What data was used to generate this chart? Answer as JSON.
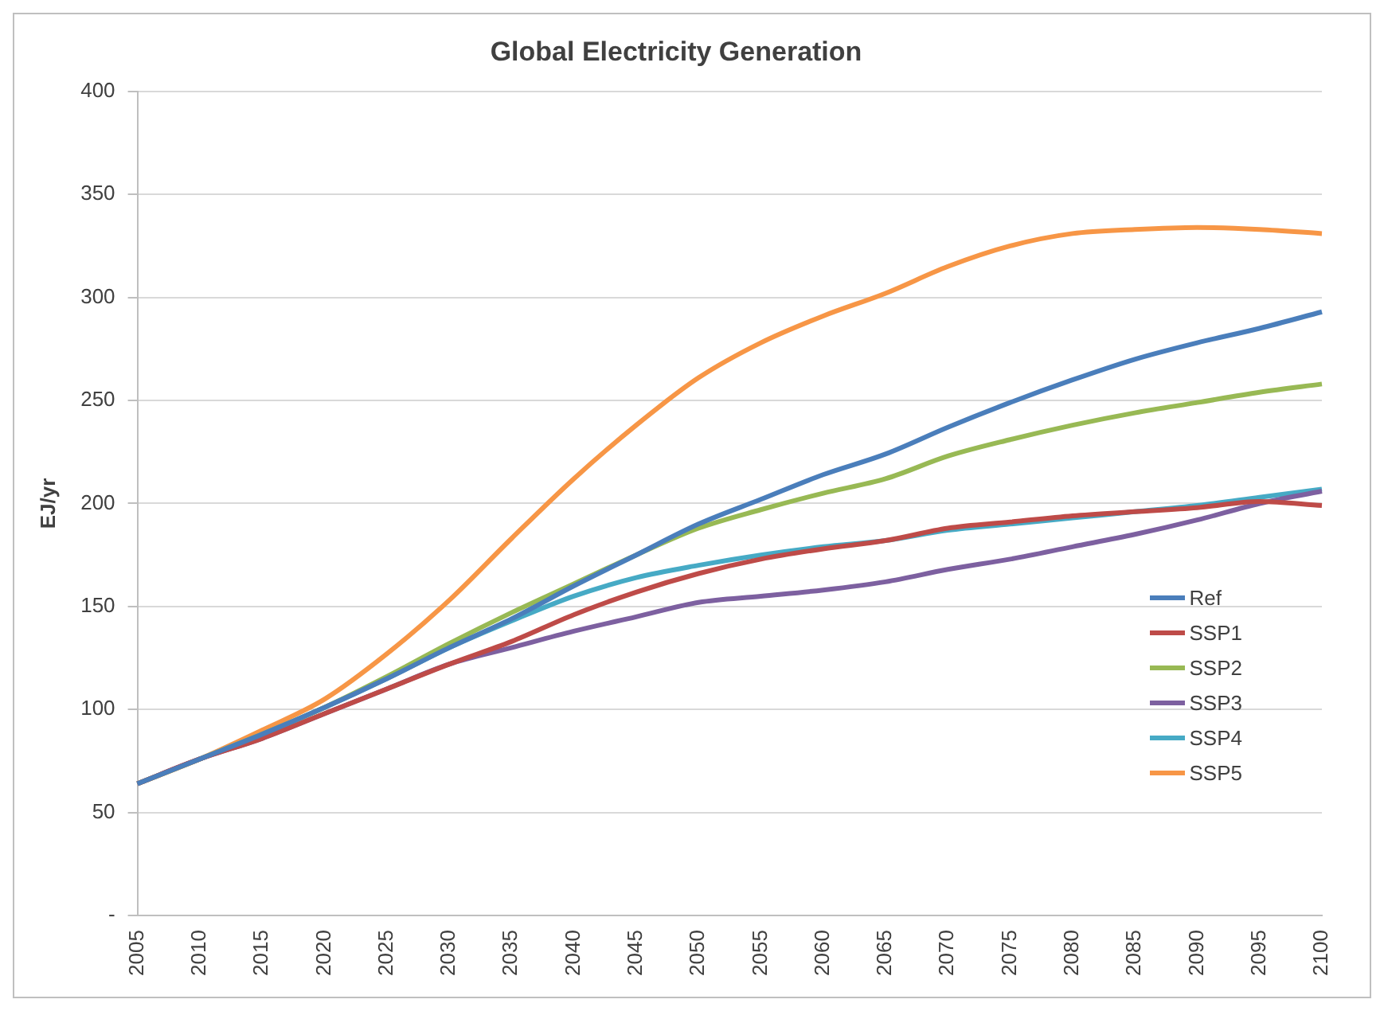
{
  "chart_data": {
    "type": "line",
    "title": "Global Electricity Generation",
    "ylabel": "EJ/yr",
    "categories": [
      "2005",
      "2010",
      "2015",
      "2020",
      "2025",
      "2030",
      "2035",
      "2040",
      "2045",
      "2050",
      "2055",
      "2060",
      "2065",
      "2070",
      "2075",
      "2080",
      "2085",
      "2090",
      "2095",
      "2100"
    ],
    "series": [
      {
        "name": "Ref",
        "color": "#4a7ebb",
        "values": [
          64,
          76,
          88,
          101,
          115,
          130,
          144,
          160,
          175,
          190,
          202,
          214,
          224,
          237,
          249,
          260,
          270,
          278,
          285,
          293
        ]
      },
      {
        "name": "SSP1",
        "color": "#be4b48",
        "values": [
          64,
          76,
          86,
          98,
          110,
          122,
          133,
          146,
          157,
          166,
          173,
          178,
          182,
          188,
          191,
          194,
          196,
          198,
          201,
          199
        ]
      },
      {
        "name": "SSP2",
        "color": "#98b954",
        "values": [
          64,
          76,
          88,
          101,
          116,
          132,
          147,
          161,
          175,
          188,
          197,
          205,
          212,
          223,
          231,
          238,
          244,
          249,
          254,
          258
        ]
      },
      {
        "name": "SSP3",
        "color": "#7d60a0",
        "values": [
          64,
          76,
          86,
          98,
          110,
          122,
          130,
          138,
          145,
          152,
          155,
          158,
          162,
          168,
          173,
          179,
          185,
          192,
          200,
          206
        ]
      },
      {
        "name": "SSP4",
        "color": "#46aac5",
        "values": [
          64,
          76,
          88,
          101,
          115,
          130,
          143,
          155,
          164,
          170,
          175,
          179,
          182,
          187,
          190,
          193,
          196,
          199,
          203,
          207
        ]
      },
      {
        "name": "SSP5",
        "color": "#f79646",
        "values": [
          64,
          76,
          90,
          105,
          127,
          153,
          183,
          212,
          238,
          261,
          278,
          291,
          302,
          315,
          325,
          331,
          333,
          334,
          333,
          331
        ]
      }
    ],
    "ylim": [
      0,
      400
    ],
    "yticks": [
      {
        "value": 0,
        "label": "-"
      },
      50,
      100,
      150,
      200,
      250,
      300,
      350,
      400
    ],
    "grid": "y",
    "legend": "bottom right",
    "marker": "none",
    "line_style": "solid"
  }
}
